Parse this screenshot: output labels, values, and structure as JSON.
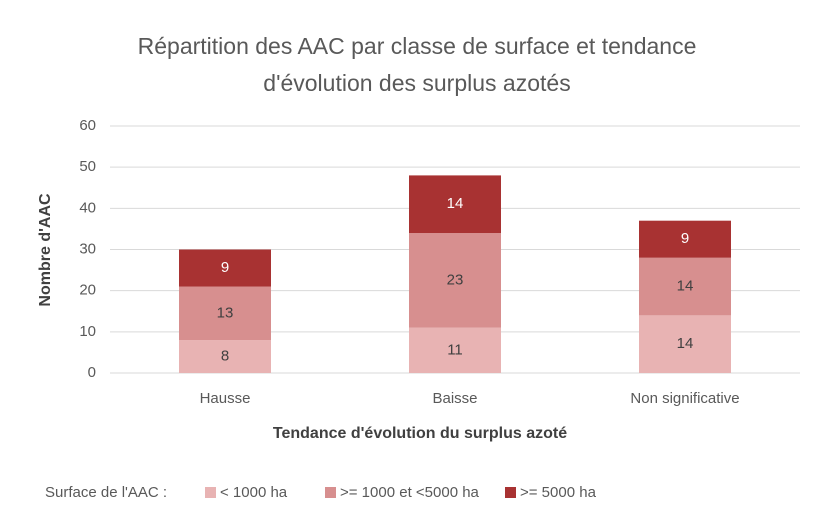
{
  "chart_data": {
    "type": "stacked_bar",
    "title": "Répartition des AAC par classe de surface et tendance d'évolution des surplus azotés",
    "x_label": "Tendance d'évolution du surplus azoté",
    "y_label": "Nombre d'AAC",
    "legend_title": "Surface de l'AAC :",
    "categories": [
      "Hausse",
      "Baisse",
      "Non significative"
    ],
    "series": [
      {
        "name": "< 1000 ha",
        "color": "#e8b3b3",
        "label_color": "#404040",
        "values": [
          8,
          11,
          14
        ]
      },
      {
        "name": ">= 1000 et <5000 ha",
        "color": "#d78f8f",
        "label_color": "#404040",
        "values": [
          13,
          23,
          14
        ]
      },
      {
        "name": ">= 5000 ha",
        "color": "#a83232",
        "label_color": "#ffffff",
        "values": [
          9,
          14,
          9
        ]
      }
    ],
    "ylim": [
      0,
      60
    ],
    "yticks": [
      0,
      10,
      20,
      30,
      40,
      50,
      60
    ],
    "grid": true,
    "legend": "bottom"
  }
}
